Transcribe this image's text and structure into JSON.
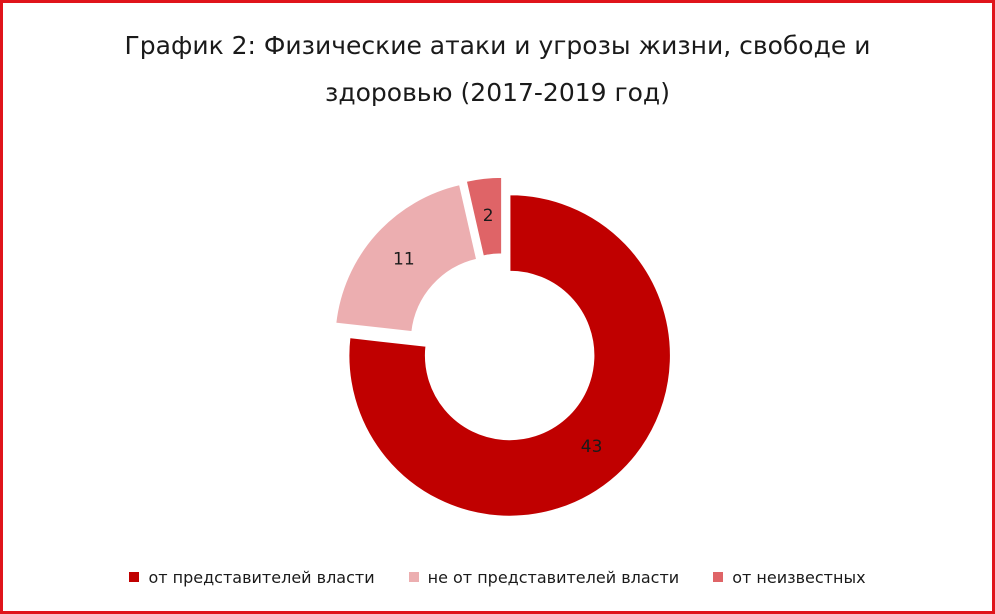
{
  "chart_data": {
    "type": "pie",
    "title_line1": "График 2: Физические атаки и угрозы жизни, свободе и",
    "title_line2": "здоровью (2017-2019 год)",
    "categories": [
      "от представителей власти",
      "не от представителей власти",
      "от неизвестных"
    ],
    "values": [
      43,
      11,
      2
    ],
    "data_labels": [
      "43",
      "11",
      "2"
    ],
    "colors": [
      "#c00000",
      "#ecaeb0",
      "#df6467"
    ],
    "donut": true,
    "exploded": true,
    "legend_position": "bottom"
  },
  "theme": {
    "frame_color": "#e0141b"
  }
}
